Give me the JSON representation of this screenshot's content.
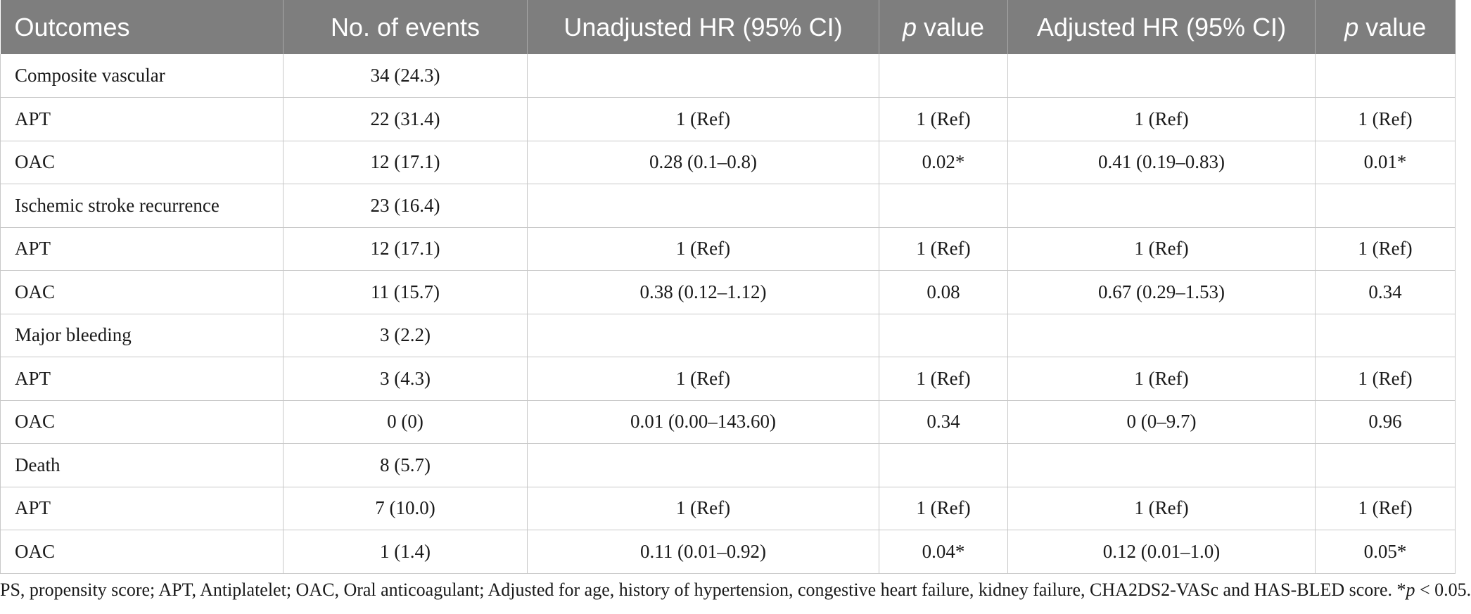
{
  "table": {
    "headers": {
      "outcomes": "Outcomes",
      "events": "No. of events",
      "unadjusted": "Unadjusted HR (95% CI)",
      "p_italic": "p",
      "p_rest": " value",
      "adjusted": "Adjusted HR (95% CI)"
    },
    "rows": [
      {
        "label": "Composite vascular",
        "events": "34 (24.3)",
        "uhr": "",
        "up": "",
        "ahr": "",
        "ap": ""
      },
      {
        "label": "APT",
        "events": "22 (31.4)",
        "uhr": "1 (Ref)",
        "up": "1 (Ref)",
        "ahr": "1 (Ref)",
        "ap": "1 (Ref)"
      },
      {
        "label": "OAC",
        "events": "12 (17.1)",
        "uhr": "0.28 (0.1–0.8)",
        "up": "0.02*",
        "ahr": "0.41 (0.19–0.83)",
        "ap": "0.01*"
      },
      {
        "label": "Ischemic stroke recurrence",
        "events": "23 (16.4)",
        "uhr": "",
        "up": "",
        "ahr": "",
        "ap": ""
      },
      {
        "label": "APT",
        "events": "12 (17.1)",
        "uhr": "1 (Ref)",
        "up": "1 (Ref)",
        "ahr": "1 (Ref)",
        "ap": "1 (Ref)"
      },
      {
        "label": "OAC",
        "events": "11 (15.7)",
        "uhr": "0.38 (0.12–1.12)",
        "up": "0.08",
        "ahr": "0.67 (0.29–1.53)",
        "ap": "0.34"
      },
      {
        "label": "Major bleeding",
        "events": "3 (2.2)",
        "uhr": "",
        "up": "",
        "ahr": "",
        "ap": ""
      },
      {
        "label": "APT",
        "events": "3 (4.3)",
        "uhr": "1 (Ref)",
        "up": "1 (Ref)",
        "ahr": "1 (Ref)",
        "ap": "1 (Ref)"
      },
      {
        "label": "OAC",
        "events": "0 (0)",
        "uhr": "0.01 (0.00–143.60)",
        "up": "0.34",
        "ahr": "0 (0–9.7)",
        "ap": "0.96"
      },
      {
        "label": "Death",
        "events": "8 (5.7)",
        "uhr": "",
        "up": "",
        "ahr": "",
        "ap": ""
      },
      {
        "label": "APT",
        "events": "7 (10.0)",
        "uhr": "1 (Ref)",
        "up": "1 (Ref)",
        "ahr": "1 (Ref)",
        "ap": "1 (Ref)"
      },
      {
        "label": "OAC",
        "events": "1 (1.4)",
        "uhr": "0.11 (0.01–0.92)",
        "up": "0.04*",
        "ahr": "0.12 (0.01–1.0)",
        "ap": "0.05*"
      }
    ]
  },
  "footnote": {
    "text": "PS, propensity score; APT, Antiplatelet; OAC, Oral anticoagulant; Adjusted for age, history of hypertension, congestive heart failure, kidney failure, CHA2DS2-VASc and HAS-BLED score. *",
    "p_italic": "p",
    "tail": " < 0.05."
  }
}
